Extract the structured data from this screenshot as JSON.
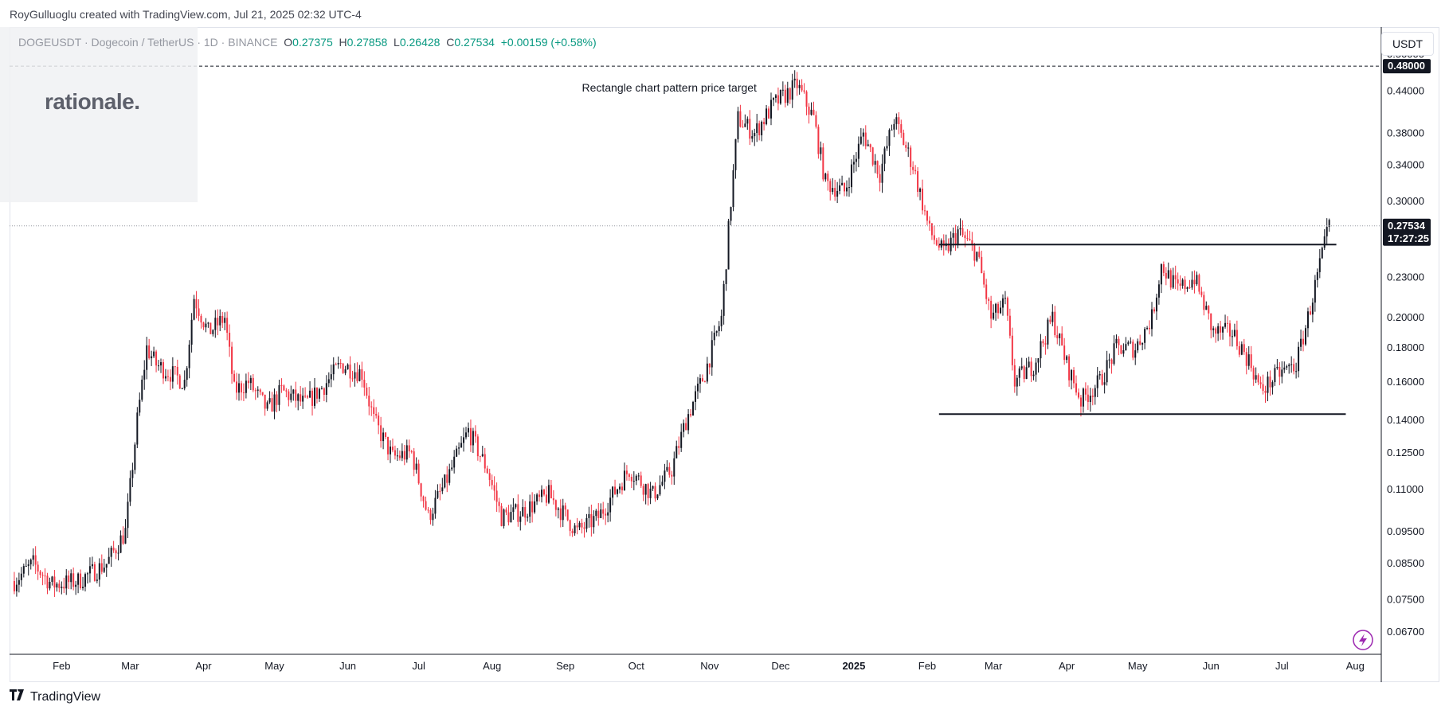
{
  "header": {
    "credit": "RoyGulluoglu created with TradingView.com, Jul 21, 2025 02:32 UTC-4"
  },
  "legend": {
    "symbol": "DOGEUSDT · Dogecoin / TetherUS · 1D · BINANCE",
    "open_label": "O",
    "open": "0.27375",
    "high_label": "H",
    "high": "0.27858",
    "low_label": "L",
    "low": "0.26428",
    "close_label": "C",
    "close": "0.27534",
    "change": "+0.00159 (+0.58%)"
  },
  "logo": {
    "text": "rationale."
  },
  "price_axis": {
    "currency_button": "USDT"
  },
  "footer": {
    "brand": "TradingView"
  },
  "chart_data": {
    "type": "candlestick",
    "y_scale": "log",
    "ylim": [
      0.062,
      0.55
    ],
    "y_ticks": [
      "0.50000",
      "0.44000",
      "0.38000",
      "0.34000",
      "0.30000",
      "0.23000",
      "0.20000",
      "0.18000",
      "0.16000",
      "0.14000",
      "0.12500",
      "0.11000",
      "0.09500",
      "0.08500",
      "0.07500",
      "0.06700"
    ],
    "x_ticks": [
      {
        "label": "Feb",
        "date": "2024-02-01"
      },
      {
        "label": "Mar",
        "date": "2024-03-01"
      },
      {
        "label": "Apr",
        "date": "2024-04-01"
      },
      {
        "label": "May",
        "date": "2024-05-01"
      },
      {
        "label": "Jun",
        "date": "2024-06-01"
      },
      {
        "label": "Jul",
        "date": "2024-07-01"
      },
      {
        "label": "Aug",
        "date": "2024-08-01"
      },
      {
        "label": "Sep",
        "date": "2024-09-01"
      },
      {
        "label": "Oct",
        "date": "2024-10-01"
      },
      {
        "label": "Nov",
        "date": "2024-11-01"
      },
      {
        "label": "Dec",
        "date": "2024-12-01"
      },
      {
        "label": "2025",
        "date": "2025-01-01",
        "bold": true
      },
      {
        "label": "Feb",
        "date": "2025-02-01"
      },
      {
        "label": "Mar",
        "date": "2025-03-01"
      },
      {
        "label": "Apr",
        "date": "2025-04-01"
      },
      {
        "label": "May",
        "date": "2025-05-01"
      },
      {
        "label": "Jun",
        "date": "2025-06-01"
      },
      {
        "label": "Jul",
        "date": "2025-07-01"
      },
      {
        "label": "Aug",
        "date": "2025-08-01"
      }
    ],
    "series_path": [
      [
        "2024-01-12",
        0.08
      ],
      [
        "2024-01-20",
        0.085
      ],
      [
        "2024-01-28",
        0.079
      ],
      [
        "2024-02-08",
        0.08
      ],
      [
        "2024-02-20",
        0.085
      ],
      [
        "2024-02-28",
        0.095
      ],
      [
        "2024-03-04",
        0.14
      ],
      [
        "2024-03-08",
        0.18
      ],
      [
        "2024-03-12",
        0.17
      ],
      [
        "2024-03-18",
        0.165
      ],
      [
        "2024-03-24",
        0.16
      ],
      [
        "2024-03-28",
        0.215
      ],
      [
        "2024-04-03",
        0.19
      ],
      [
        "2024-04-10",
        0.2
      ],
      [
        "2024-04-14",
        0.155
      ],
      [
        "2024-04-20",
        0.16
      ],
      [
        "2024-04-28",
        0.145
      ],
      [
        "2024-05-04",
        0.155
      ],
      [
        "2024-05-14",
        0.148
      ],
      [
        "2024-05-22",
        0.158
      ],
      [
        "2024-05-29",
        0.17
      ],
      [
        "2024-06-07",
        0.165
      ],
      [
        "2024-06-12",
        0.14
      ],
      [
        "2024-06-20",
        0.123
      ],
      [
        "2024-06-28",
        0.125
      ],
      [
        "2024-07-05",
        0.1
      ],
      [
        "2024-07-12",
        0.112
      ],
      [
        "2024-07-22",
        0.135
      ],
      [
        "2024-07-30",
        0.118
      ],
      [
        "2024-08-05",
        0.1
      ],
      [
        "2024-08-14",
        0.102
      ],
      [
        "2024-08-25",
        0.108
      ],
      [
        "2024-09-06",
        0.095
      ],
      [
        "2024-09-15",
        0.1
      ],
      [
        "2024-09-28",
        0.118
      ],
      [
        "2024-10-08",
        0.108
      ],
      [
        "2024-10-16",
        0.118
      ],
      [
        "2024-10-22",
        0.14
      ],
      [
        "2024-10-30",
        0.165
      ],
      [
        "2024-11-06",
        0.2
      ],
      [
        "2024-11-10",
        0.3
      ],
      [
        "2024-11-13",
        0.4
      ],
      [
        "2024-11-20",
        0.38
      ],
      [
        "2024-11-28",
        0.42
      ],
      [
        "2024-12-05",
        0.44
      ],
      [
        "2024-12-08",
        0.45
      ],
      [
        "2024-12-15",
        0.4
      ],
      [
        "2024-12-20",
        0.32
      ],
      [
        "2024-12-28",
        0.31
      ],
      [
        "2025-01-05",
        0.38
      ],
      [
        "2025-01-12",
        0.33
      ],
      [
        "2025-01-18",
        0.4
      ],
      [
        "2025-01-26",
        0.34
      ],
      [
        "2025-02-02",
        0.27
      ],
      [
        "2025-02-08",
        0.25
      ],
      [
        "2025-02-14",
        0.27
      ],
      [
        "2025-02-22",
        0.25
      ],
      [
        "2025-02-28",
        0.2
      ],
      [
        "2025-03-06",
        0.21
      ],
      [
        "2025-03-10",
        0.16
      ],
      [
        "2025-03-18",
        0.17
      ],
      [
        "2025-03-26",
        0.2
      ],
      [
        "2025-04-01",
        0.17
      ],
      [
        "2025-04-07",
        0.15
      ],
      [
        "2025-04-15",
        0.16
      ],
      [
        "2025-04-22",
        0.18
      ],
      [
        "2025-04-30",
        0.18
      ],
      [
        "2025-05-07",
        0.2
      ],
      [
        "2025-05-11",
        0.24
      ],
      [
        "2025-05-18",
        0.22
      ],
      [
        "2025-05-25",
        0.23
      ],
      [
        "2025-06-02",
        0.19
      ],
      [
        "2025-06-10",
        0.19
      ],
      [
        "2025-06-18",
        0.17
      ],
      [
        "2025-06-22",
        0.155
      ],
      [
        "2025-06-30",
        0.165
      ],
      [
        "2025-07-07",
        0.17
      ],
      [
        "2025-07-12",
        0.2
      ],
      [
        "2025-07-17",
        0.24
      ],
      [
        "2025-07-21",
        0.275
      ]
    ],
    "annotations": [
      {
        "text": "Rectangle chart pattern price target",
        "date": "2024-09-08",
        "price": 0.48
      },
      {
        "type": "dashed_hline",
        "price": 0.48
      },
      {
        "type": "hline",
        "price": 0.258,
        "from": "2025-02-06",
        "to": "2025-07-24"
      },
      {
        "type": "hline",
        "price": 0.143,
        "from": "2025-02-06",
        "to": "2025-07-28"
      }
    ],
    "price_tags": [
      {
        "label": "0.48000",
        "price": 0.48,
        "color": "#131722"
      },
      {
        "label": "0.27534",
        "sub": "17:27:25",
        "price": 0.27534,
        "color": "#131722"
      }
    ],
    "colors": {
      "up": "#131722",
      "down": "#f23645"
    }
  }
}
